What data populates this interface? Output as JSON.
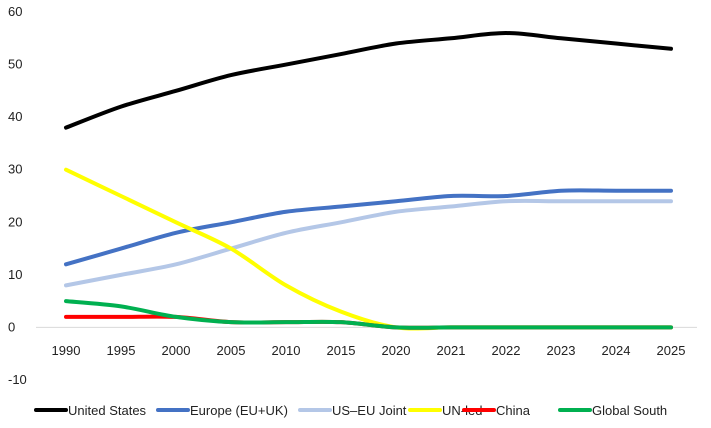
{
  "chart_data": {
    "type": "line",
    "title": "",
    "xlabel": "",
    "ylabel": "",
    "categories": [
      "1990",
      "1995",
      "2000",
      "2005",
      "2010",
      "2015",
      "2020",
      "2021",
      "2022",
      "2023",
      "2024",
      "2025"
    ],
    "ylim": [
      -10,
      60
    ],
    "yticks": [
      "-10",
      "0",
      "10",
      "20",
      "30",
      "40",
      "50",
      "60"
    ],
    "grid": false,
    "legend_position": "bottom",
    "series": [
      {
        "name": "United States",
        "color": "#000000",
        "values": [
          38,
          42,
          45,
          48,
          50,
          52,
          54,
          55,
          56,
          55,
          54,
          53
        ]
      },
      {
        "name": "Europe (EU+UK)",
        "color": "#4472C4",
        "values": [
          12,
          15,
          18,
          20,
          22,
          23,
          24,
          25,
          25,
          26,
          26,
          26
        ]
      },
      {
        "name": "US–EU Joint",
        "color": "#B4C7E7",
        "values": [
          8,
          10,
          12,
          15,
          18,
          20,
          22,
          23,
          24,
          24,
          24,
          24
        ]
      },
      {
        "name": "UN-led",
        "color": "#FFFF00",
        "values": [
          30,
          25,
          20,
          15,
          8,
          3,
          0,
          0,
          0,
          0,
          0,
          0
        ]
      },
      {
        "name": "China",
        "color": "#FF0000",
        "values": [
          2,
          2,
          2,
          1,
          1,
          1,
          0,
          0,
          0,
          0,
          0,
          0
        ]
      },
      {
        "name": "Global South",
        "color": "#00B050",
        "values": [
          5,
          4,
          2,
          1,
          1,
          1,
          0,
          0,
          0,
          0,
          0,
          0
        ]
      }
    ]
  }
}
